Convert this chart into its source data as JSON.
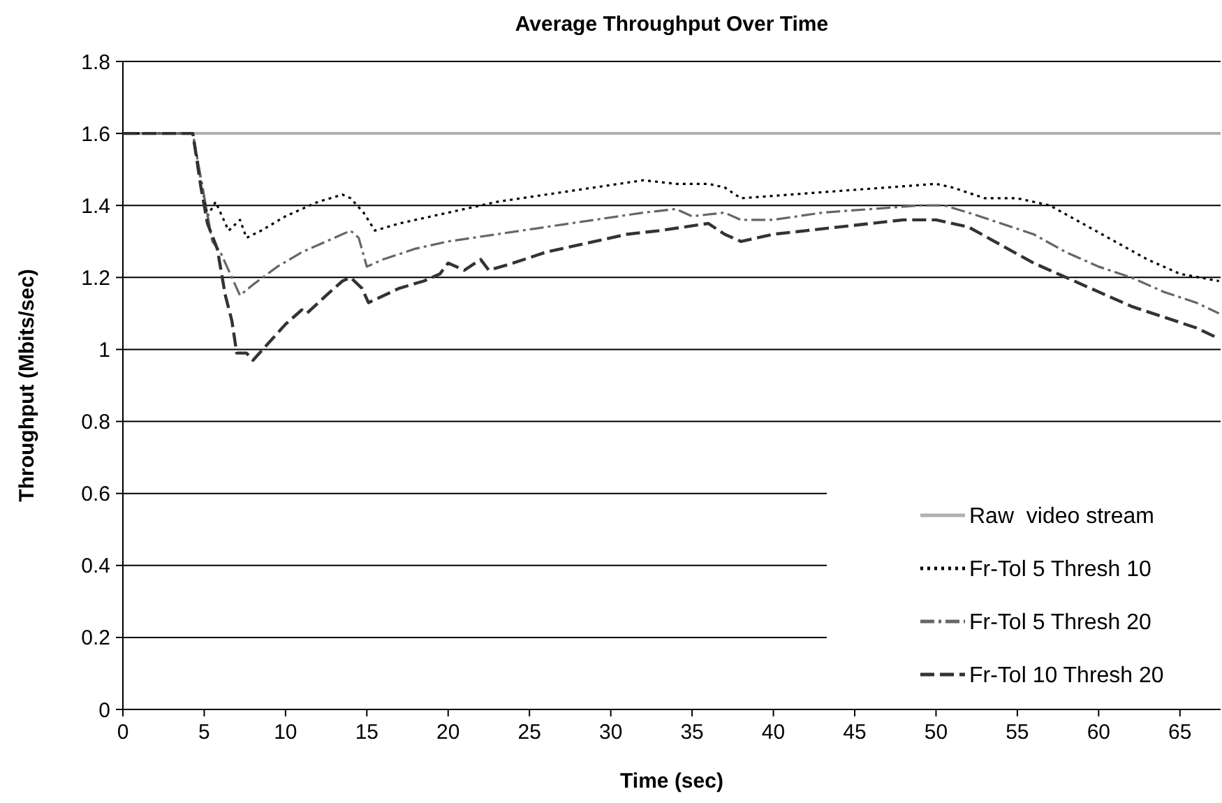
{
  "chart_data": {
    "type": "line",
    "title": "Average Throughput Over Time",
    "xlabel": "Time (sec)",
    "ylabel": "Throughput (Mbits/sec)",
    "xlim": [
      0,
      67.5
    ],
    "xticks": [
      0,
      5,
      10,
      15,
      20,
      25,
      30,
      35,
      40,
      45,
      50,
      55,
      60,
      65
    ],
    "ylim": [
      0,
      1.8
    ],
    "yticks": [
      0,
      0.2,
      0.4,
      0.6,
      0.8,
      1,
      1.2,
      1.4,
      1.6,
      1.8
    ],
    "grid": "y",
    "legend": "bottom right",
    "marker": "none",
    "series": [
      {
        "name": "Raw  video stream",
        "color": "#b0b0b0",
        "line_style": "solid",
        "x": [
          0,
          67.5
        ],
        "values": [
          1.6,
          1.6
        ]
      },
      {
        "name": "Fr-Tol 5 Thresh 10",
        "color": "#000000",
        "line_style": "dotted",
        "x": [
          0,
          4.3,
          5.2,
          5.7,
          6.5,
          7.2,
          7.6,
          8.5,
          10,
          12,
          13.5,
          14,
          14.8,
          15.5,
          17,
          20,
          23,
          26,
          29,
          32,
          34,
          36,
          37,
          38,
          41,
          44,
          47,
          50,
          51,
          53,
          55,
          57,
          59,
          61,
          63,
          65,
          67.4
        ],
        "values": [
          1.6,
          1.6,
          1.37,
          1.41,
          1.33,
          1.36,
          1.31,
          1.33,
          1.37,
          1.41,
          1.43,
          1.42,
          1.38,
          1.33,
          1.35,
          1.38,
          1.41,
          1.43,
          1.45,
          1.47,
          1.46,
          1.46,
          1.45,
          1.42,
          1.43,
          1.44,
          1.45,
          1.46,
          1.45,
          1.42,
          1.42,
          1.4,
          1.35,
          1.3,
          1.25,
          1.21,
          1.19
        ]
      },
      {
        "name": "Fr-Tol 5 Thresh 20",
        "color": "#666666",
        "line_style": "dashdot",
        "x": [
          0,
          4.3,
          5.5,
          6,
          6.8,
          7.2,
          8,
          9.5,
          11,
          13,
          14,
          14.5,
          15,
          16,
          18,
          20,
          23,
          26,
          29,
          32,
          34,
          35,
          37,
          38,
          40,
          43,
          46,
          49,
          50.5,
          52,
          54,
          56,
          58,
          60,
          62,
          64,
          66,
          67.4
        ],
        "values": [
          1.6,
          1.6,
          1.3,
          1.27,
          1.19,
          1.15,
          1.18,
          1.23,
          1.27,
          1.31,
          1.33,
          1.31,
          1.23,
          1.25,
          1.28,
          1.3,
          1.32,
          1.34,
          1.36,
          1.38,
          1.39,
          1.37,
          1.38,
          1.36,
          1.36,
          1.38,
          1.39,
          1.4,
          1.4,
          1.38,
          1.35,
          1.32,
          1.27,
          1.23,
          1.2,
          1.16,
          1.13,
          1.1
        ]
      },
      {
        "name": "Fr-Tol 10 Thresh 20",
        "color": "#333333",
        "line_style": "dashed",
        "x": [
          0,
          4.3,
          4.8,
          5.2,
          5.8,
          6.3,
          6.7,
          7,
          7.6,
          8,
          9,
          10,
          11,
          11.3,
          12.5,
          13.5,
          14,
          14.7,
          15.1,
          17,
          18.5,
          19.5,
          20,
          21,
          22,
          22.5,
          24,
          26,
          28,
          31,
          33,
          36,
          37,
          38,
          40,
          42,
          44,
          48,
          50,
          52,
          54,
          56,
          58,
          60,
          62,
          64,
          66,
          67.4
        ],
        "values": [
          1.6,
          1.6,
          1.45,
          1.35,
          1.28,
          1.15,
          1.08,
          0.99,
          0.99,
          0.97,
          1.02,
          1.07,
          1.11,
          1.1,
          1.15,
          1.19,
          1.2,
          1.17,
          1.13,
          1.17,
          1.19,
          1.21,
          1.24,
          1.22,
          1.25,
          1.22,
          1.24,
          1.27,
          1.29,
          1.32,
          1.33,
          1.35,
          1.32,
          1.3,
          1.32,
          1.33,
          1.34,
          1.36,
          1.36,
          1.34,
          1.29,
          1.24,
          1.2,
          1.16,
          1.12,
          1.09,
          1.06,
          1.03
        ]
      }
    ]
  }
}
